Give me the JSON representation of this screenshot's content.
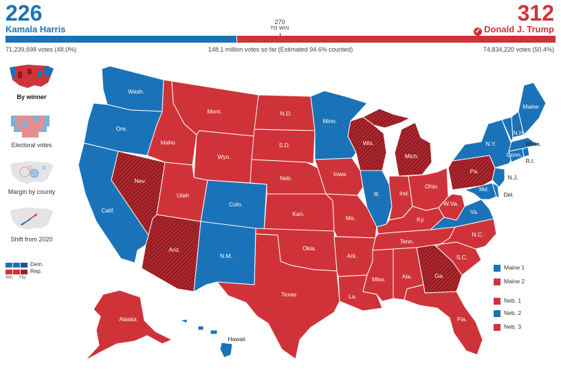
{
  "colors": {
    "dem": "#1a73b8",
    "rep": "#cf3339",
    "dem_flip": "#0e4f80",
    "rep_flip": "#8a1c22",
    "border": "#ffffff"
  },
  "header": {
    "dem": {
      "electoral_votes": "226",
      "name": "Kamala Harris",
      "popular_votes": "71,239,698 votes (48.0%)"
    },
    "rep": {
      "electoral_votes": "312",
      "name": "Donald J. Trump",
      "popular_votes": "74,834,220 votes (50.4%)",
      "winner_icon": "checkmark-circle-icon"
    },
    "threshold_value": "270",
    "threshold_sub": "TO WIN",
    "total_votes_text": "148.1 million votes so far (Estimated 94.6% counted)",
    "bar": {
      "dem_ev": 226,
      "rep_ev": 312,
      "total_ev": 538
    }
  },
  "view_options": [
    {
      "label": "By winner",
      "active": true,
      "icon": "us-map-winner-icon"
    },
    {
      "label": "Electoral votes",
      "active": false,
      "icon": "electoral-cartogram-icon"
    },
    {
      "label": "Margin by county",
      "active": false,
      "icon": "bubble-map-icon"
    },
    {
      "label": "Shift from 2020",
      "active": false,
      "icon": "shift-arrows-map-icon"
    }
  ],
  "legend": {
    "dem": "Dem.",
    "rep": "Rep.",
    "win": "Win",
    "flip": "Flip"
  },
  "state_labels": {
    "wash": "Wash.",
    "ore": "Ore.",
    "calif": "Calif.",
    "nev": "Nev.",
    "idaho": "Idaho",
    "mont": "Mont.",
    "wyo": "Wyo.",
    "utah": "Utah",
    "ariz": "Ariz.",
    "colo": "Colo.",
    "nm": "N.M.",
    "nd": "N.D.",
    "sd": "S.D.",
    "neb": "Neb.",
    "kan": "Kan.",
    "okla": "Okla.",
    "texas": "Texas",
    "minn": "Minn.",
    "iowa": "Iowa",
    "mo": "Mo.",
    "ark": "Ark.",
    "la": "La.",
    "wis": "Wis.",
    "ill": "Ill.",
    "mich": "Mich.",
    "ind": "Ind.",
    "ohio": "Ohio",
    "ky": "Ky.",
    "tenn": "Tenn.",
    "miss": "Miss.",
    "ala": "Ala.",
    "ga": "Ga.",
    "fla": "Fla.",
    "sc": "S.C.",
    "nc": "N.C.",
    "va": "Va.",
    "wva": "W.Va.",
    "pa": "Pa.",
    "ny": "N.Y.",
    "vt": "Vt.",
    "nh": "N.H.",
    "maine": "Maine",
    "mass": "Mass.",
    "conn": "Conn.",
    "ri": "R.I.",
    "nj": "N.J.",
    "del": "Del.",
    "md": "Md.",
    "alaska": "Alaska",
    "hawaii": "Hawaii"
  },
  "district_legend": [
    {
      "label": "Maine 1",
      "party": "dem"
    },
    {
      "label": "Maine 2",
      "party": "rep"
    },
    {
      "label": "Neb. 1",
      "party": "rep"
    },
    {
      "label": "Neb. 2",
      "party": "dem"
    },
    {
      "label": "Neb. 3",
      "party": "rep"
    }
  ]
}
